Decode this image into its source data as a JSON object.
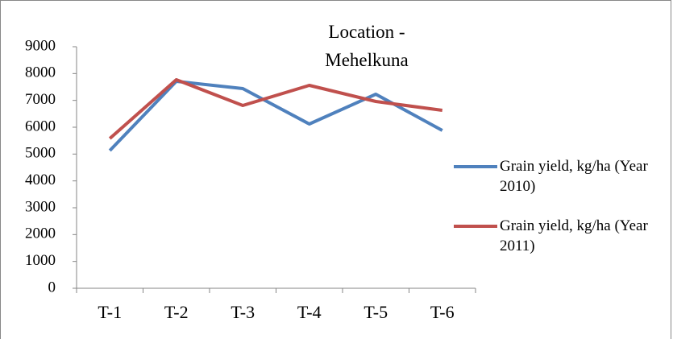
{
  "chart_data": {
    "type": "line",
    "title": "Location - Mehelkuna",
    "categories": [
      "T-1",
      "T-2",
      "T-3",
      "T-4",
      "T-5",
      "T-6"
    ],
    "series": [
      {
        "name": "Grain yield, kg/ha (Year 2010)",
        "color": "#4f81bd",
        "values": [
          5130,
          7710,
          7440,
          6120,
          7230,
          5880
        ]
      },
      {
        "name": "Grain yield, kg/ha (Year 2011)",
        "color": "#c0504d",
        "values": [
          5580,
          7770,
          6810,
          7560,
          6960,
          6630
        ]
      }
    ],
    "ylim": [
      0,
      9000
    ],
    "yticks": [
      0,
      1000,
      2000,
      3000,
      4000,
      5000,
      6000,
      7000,
      8000,
      9000
    ],
    "grid": false,
    "legend": "right"
  }
}
